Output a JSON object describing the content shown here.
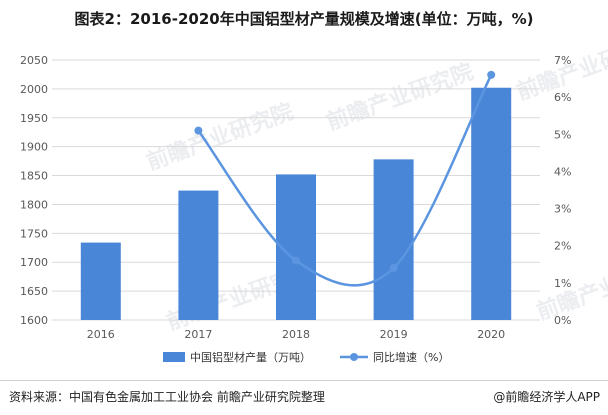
{
  "title": "图表2：2016-2020年中国铝型材产量规模及增速(单位：万吨，%)",
  "source": "资料来源：中国有色金属加工工业协会 前瞻产业研究院整理",
  "credit": "@前瞻经济学人APP",
  "watermark": "前瞻产业研究院",
  "colors": {
    "bar": "#4a86d8",
    "line": "#5b95e0",
    "axis_text": "#595959",
    "grid": "#d9d9d9"
  },
  "chart_data": {
    "type": "bar",
    "title": "图表2：2016-2020年中国铝型材产量规模及增速(单位：万吨，%)",
    "categories": [
      "2016",
      "2017",
      "2018",
      "2019",
      "2020"
    ],
    "series": [
      {
        "name": "中国铝型材产量（万吨）",
        "type": "bar",
        "axis": "left",
        "values": [
          1734,
          1824,
          1852,
          1878,
          2002
        ]
      },
      {
        "name": "同比增速（%）",
        "type": "line",
        "axis": "right",
        "values": [
          null,
          5.1,
          1.6,
          1.4,
          6.6
        ]
      }
    ],
    "ylim_left": [
      1600,
      2050
    ],
    "yticks_left": [
      1600,
      1650,
      1700,
      1750,
      1800,
      1850,
      1900,
      1950,
      2000,
      2050
    ],
    "ylim_right": [
      0,
      7
    ],
    "yticks_right": [
      "0%",
      "1%",
      "2%",
      "3%",
      "4%",
      "5%",
      "6%",
      "7%"
    ],
    "grid": true,
    "legend_position": "bottom"
  }
}
